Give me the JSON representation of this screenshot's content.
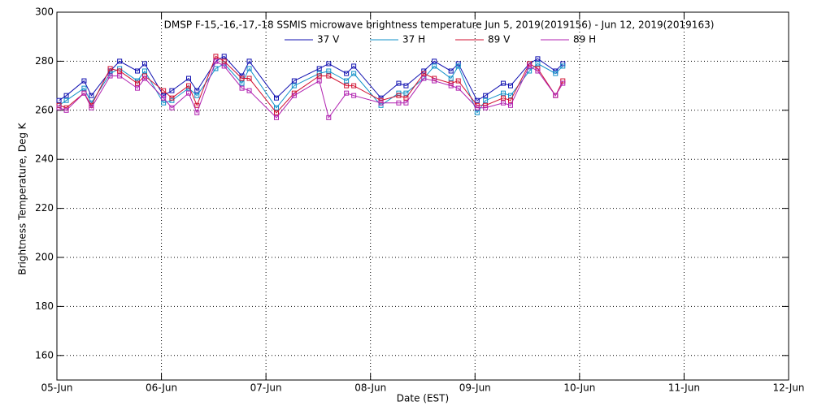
{
  "chart_data": {
    "type": "line",
    "title": "DMSP F-15,-16,-17,-18 SSMIS microwave brightness temperature Jun  5, 2019(2019156) - Jun 12, 2019(2019163)",
    "xlabel": "Date (EST)",
    "ylabel": "Brightness Temperature, Deg K",
    "xlim": [
      0,
      7
    ],
    "xticks": [
      {
        "value": 0,
        "label": "05-Jun"
      },
      {
        "value": 1,
        "label": "06-Jun"
      },
      {
        "value": 2,
        "label": "07-Jun"
      },
      {
        "value": 3,
        "label": "08-Jun"
      },
      {
        "value": 4,
        "label": "09-Jun"
      },
      {
        "value": 5,
        "label": "10-Jun"
      },
      {
        "value": 6,
        "label": "11-Jun"
      },
      {
        "value": 7,
        "label": "12-Jun"
      }
    ],
    "ylim": [
      150,
      300
    ],
    "yticks": [
      160,
      180,
      200,
      220,
      240,
      260,
      280,
      300
    ],
    "grid": true,
    "x": [
      0.02,
      0.09,
      0.26,
      0.33,
      0.51,
      0.6,
      0.77,
      0.84,
      1.02,
      1.1,
      1.26,
      1.34,
      1.52,
      1.6,
      1.77,
      1.84,
      2.1,
      2.27,
      2.51,
      2.6,
      2.77,
      2.84,
      3.1,
      3.27,
      3.34,
      3.51,
      3.61,
      3.77,
      3.84,
      4.02,
      4.1,
      4.27,
      4.34,
      4.52,
      4.6,
      4.77,
      4.84
    ],
    "series": [
      {
        "name": "37 V",
        "color": "#1010b0",
        "values": [
          264,
          266,
          272,
          266,
          276,
          280,
          276,
          279,
          266,
          268,
          273,
          268,
          280,
          282,
          274,
          280,
          265,
          272,
          277,
          279,
          275,
          278,
          265,
          271,
          270,
          276,
          280,
          276,
          279,
          264,
          266,
          271,
          270,
          279,
          281,
          276,
          279
        ]
      },
      {
        "name": "37 H",
        "color": "#1090c8",
        "values": [
          262,
          264,
          269,
          263,
          275,
          277,
          272,
          276,
          263,
          264,
          269,
          266,
          277,
          279,
          271,
          277,
          261,
          270,
          275,
          276,
          272,
          275,
          262,
          267,
          267,
          273,
          278,
          273,
          278,
          259,
          264,
          267,
          266,
          276,
          279,
          275,
          278
        ]
      },
      {
        "name": "89 V",
        "color": "#d01030",
        "values": [
          262,
          261,
          267,
          262,
          277,
          276,
          271,
          274,
          268,
          265,
          270,
          262,
          282,
          280,
          273,
          273,
          259,
          267,
          274,
          274,
          270,
          270,
          264,
          266,
          265,
          275,
          273,
          271,
          272,
          262,
          262,
          265,
          264,
          279,
          277,
          266,
          272
        ]
      },
      {
        "name": "89 H",
        "color": "#b020b0",
        "values": [
          261,
          260,
          267,
          261,
          274,
          274,
          269,
          273,
          265,
          261,
          267,
          259,
          280,
          278,
          269,
          268,
          257,
          266,
          272,
          257,
          267,
          266,
          263,
          263,
          263,
          273,
          272,
          270,
          269,
          261,
          261,
          263,
          262,
          278,
          276,
          266,
          271
        ]
      }
    ]
  }
}
